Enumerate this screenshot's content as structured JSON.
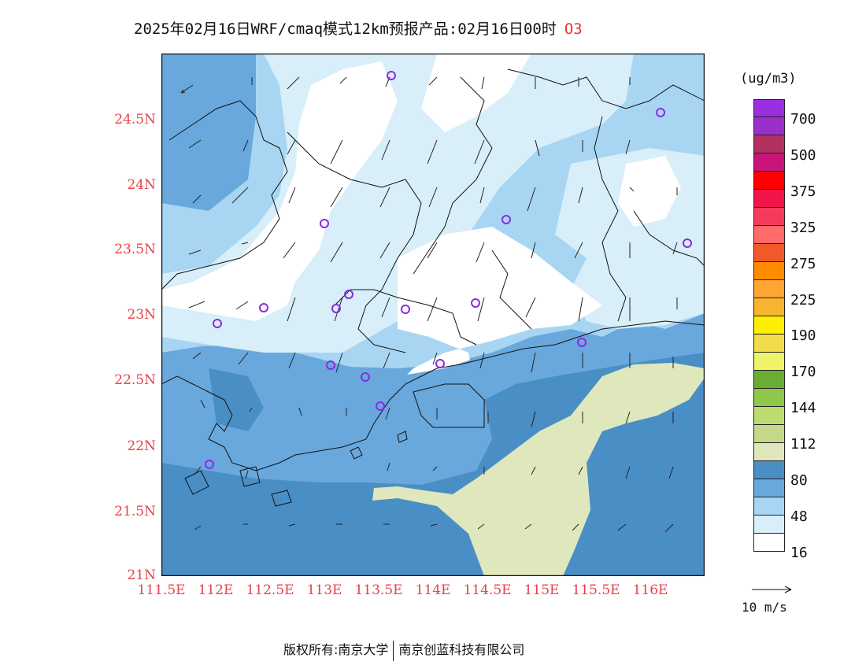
{
  "title": {
    "main": "2025年02月16日WRF/cmaq模式12km预报产品:02月16日00时",
    "species": "O3"
  },
  "axes": {
    "y_ticks": [
      "24.5N",
      "24N",
      "23.5N",
      "23N",
      "22.5N",
      "22N",
      "21.5N",
      "21N"
    ],
    "x_ticks": [
      "111.5E",
      "112E",
      "112.5E",
      "113E",
      "113.5E",
      "114E",
      "114.5E",
      "115E",
      "115.5E",
      "116E"
    ]
  },
  "legend": {
    "unit": "(ug/m3)",
    "levels": [
      "700",
      "500",
      "375",
      "325",
      "275",
      "225",
      "190",
      "170",
      "144",
      "112",
      "80",
      "48",
      "16"
    ],
    "colors": [
      "#9a2fe0",
      "#9b2fc9",
      "#b23160",
      "#c9157a",
      "#ff0000",
      "#f0154a",
      "#f53b5c",
      "#ff6a6a",
      "#f05a2a",
      "#ff8c00",
      "#ffa534",
      "#f7b52f",
      "#ffee00",
      "#f2dc4a",
      "#eef36a",
      "#6aac34",
      "#8ec84a",
      "#bcdc72",
      "#c4d88a",
      "#dfe8bd",
      "#4a8ec6",
      "#69a8dc",
      "#a8d6f2",
      "#d8eef9",
      "#ffffff"
    ]
  },
  "wind_reference": {
    "label": "10 m/s"
  },
  "footer": {
    "left": "版权所有:南京大学",
    "right": "南京创蓝科技有限公司"
  },
  "map": {
    "lon_range": [
      111.5,
      116.5
    ],
    "lat_range": [
      21,
      25
    ]
  }
}
